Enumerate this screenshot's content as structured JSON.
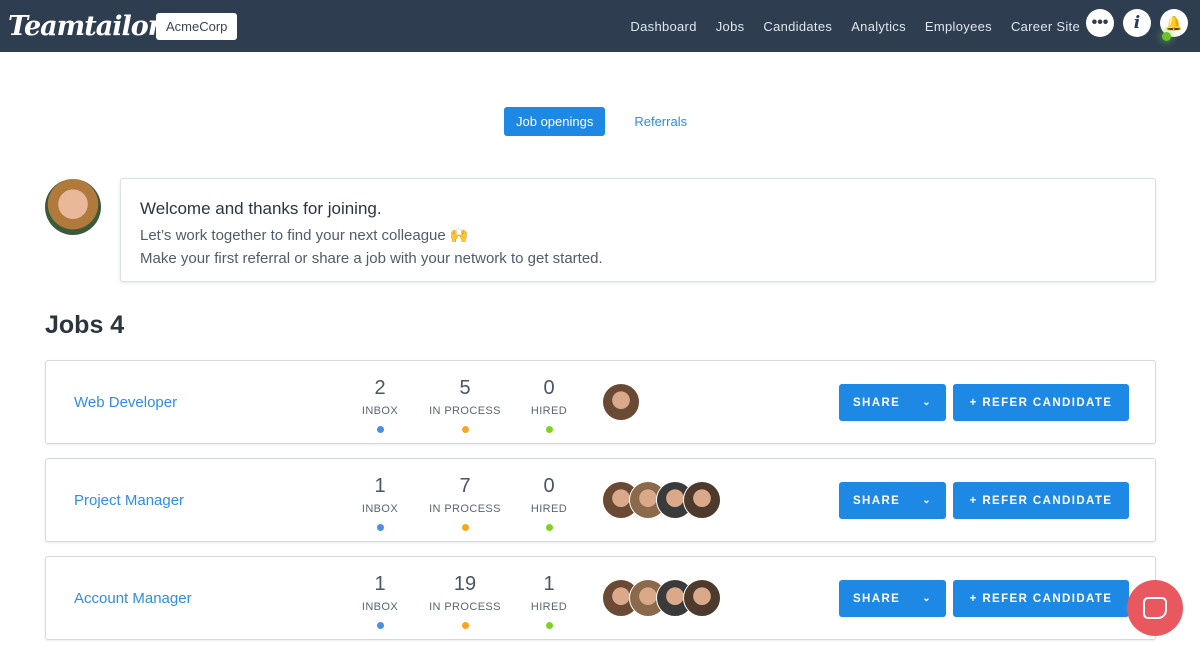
{
  "nav": {
    "logo": "Teamtailor",
    "company": "AcmeCorp",
    "links": [
      "Dashboard",
      "Jobs",
      "Candidates",
      "Analytics",
      "Employees",
      "Career Site"
    ],
    "icons": [
      "more-icon",
      "info-icon",
      "bell-icon"
    ],
    "status_color": "#6cc12d"
  },
  "tabs": [
    {
      "label": "Job openings",
      "active": true
    },
    {
      "label": "Referrals",
      "active": false
    }
  ],
  "welcome": {
    "title": "Welcome and thanks for joining.",
    "line1": "Let’s work together to find your next colleague 🙌",
    "line2": "Make your first referral or share a job with your network to get started."
  },
  "jobs_title": "Jobs 4",
  "labels": {
    "inbox": "INBOX",
    "in_process": "IN PROCESS",
    "hired": "HIRED",
    "share": "SHARE",
    "refer": "+ REFER CANDIDATE"
  },
  "colors": {
    "inbox": "#4a90e2",
    "in_process": "#f5a623",
    "hired": "#7ed321",
    "accent": "#1e88e5"
  },
  "jobs": [
    {
      "title": "Web Developer",
      "inbox": "2",
      "in_process": "5",
      "hired": "0",
      "avatars": 1
    },
    {
      "title": "Project Manager",
      "inbox": "1",
      "in_process": "7",
      "hired": "0",
      "avatars": 4
    },
    {
      "title": "Account Manager",
      "inbox": "1",
      "in_process": "19",
      "hired": "1",
      "avatars": 4
    }
  ]
}
